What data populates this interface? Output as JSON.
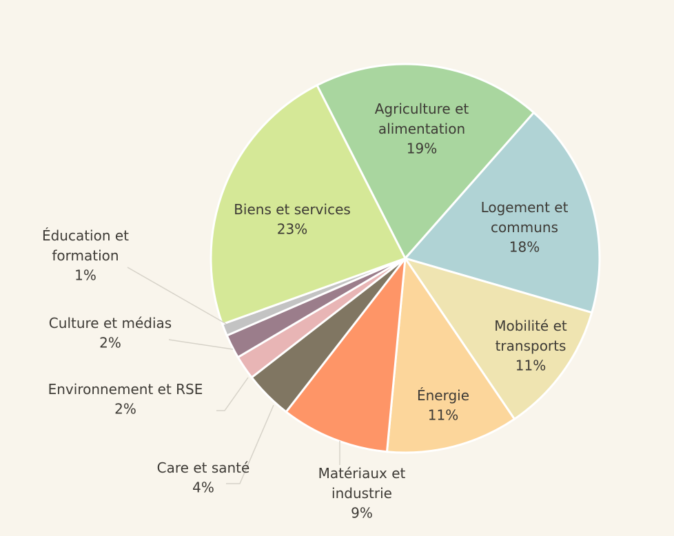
{
  "chart_data": {
    "type": "pie",
    "categories": [
      "Agriculture et alimentation",
      "Logement et communs",
      "Mobilité et transports",
      "Énergie",
      "Matériaux et industrie",
      "Care et santé",
      "Environnement et RSE",
      "Culture et médias",
      "Éducation et formation",
      "Biens et services"
    ],
    "values": [
      19,
      18,
      11,
      11,
      9,
      4,
      2,
      2,
      1,
      23
    ],
    "value_labels": [
      "19%",
      "18%",
      "11%",
      "11%",
      "9%",
      "4%",
      "2%",
      "2%",
      "1%",
      "23%"
    ],
    "colors": [
      "#a9d69f",
      "#b0d3d5",
      "#efe4b1",
      "#fcd69b",
      "#fe9567",
      "#807662",
      "#e8b5b5",
      "#9b7d8b",
      "#c3c3c3",
      "#d5e897"
    ]
  }
}
